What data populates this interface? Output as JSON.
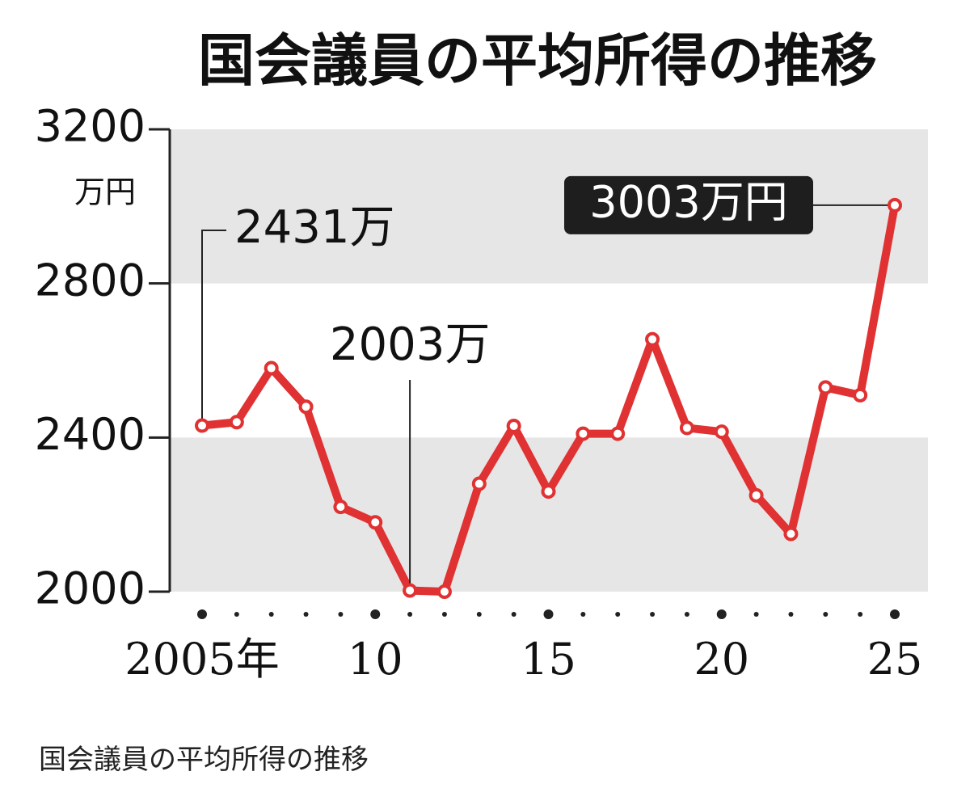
{
  "chart_data": {
    "type": "line",
    "title": "国会議員の平均所得の推移",
    "y_unit": "万円",
    "categories": [
      "2005年",
      null,
      null,
      null,
      null,
      "10",
      null,
      null,
      null,
      null,
      "15",
      null,
      null,
      null,
      null,
      "20",
      null,
      null,
      null,
      null,
      "25"
    ],
    "series": [
      {
        "name": "平均所得",
        "color": "#e03232",
        "values": [
          2431,
          2440,
          2580,
          2480,
          2220,
          2180,
          2003,
          2000,
          2280,
          2430,
          2260,
          2410,
          2410,
          2655,
          2425,
          2415,
          2250,
          2150,
          2530,
          2510,
          3003
        ],
        "value_labels": [
          "2431万",
          null,
          null,
          null,
          null,
          null,
          "2003万",
          null,
          null,
          null,
          null,
          null,
          null,
          null,
          null,
          null,
          null,
          null,
          null,
          null,
          "3003万円"
        ]
      }
    ],
    "ylim": [
      2000,
      3200
    ],
    "yticks": [
      2000,
      2400,
      2800,
      3200
    ],
    "grid": true
  },
  "caption": "国会議員の平均所得の推移"
}
